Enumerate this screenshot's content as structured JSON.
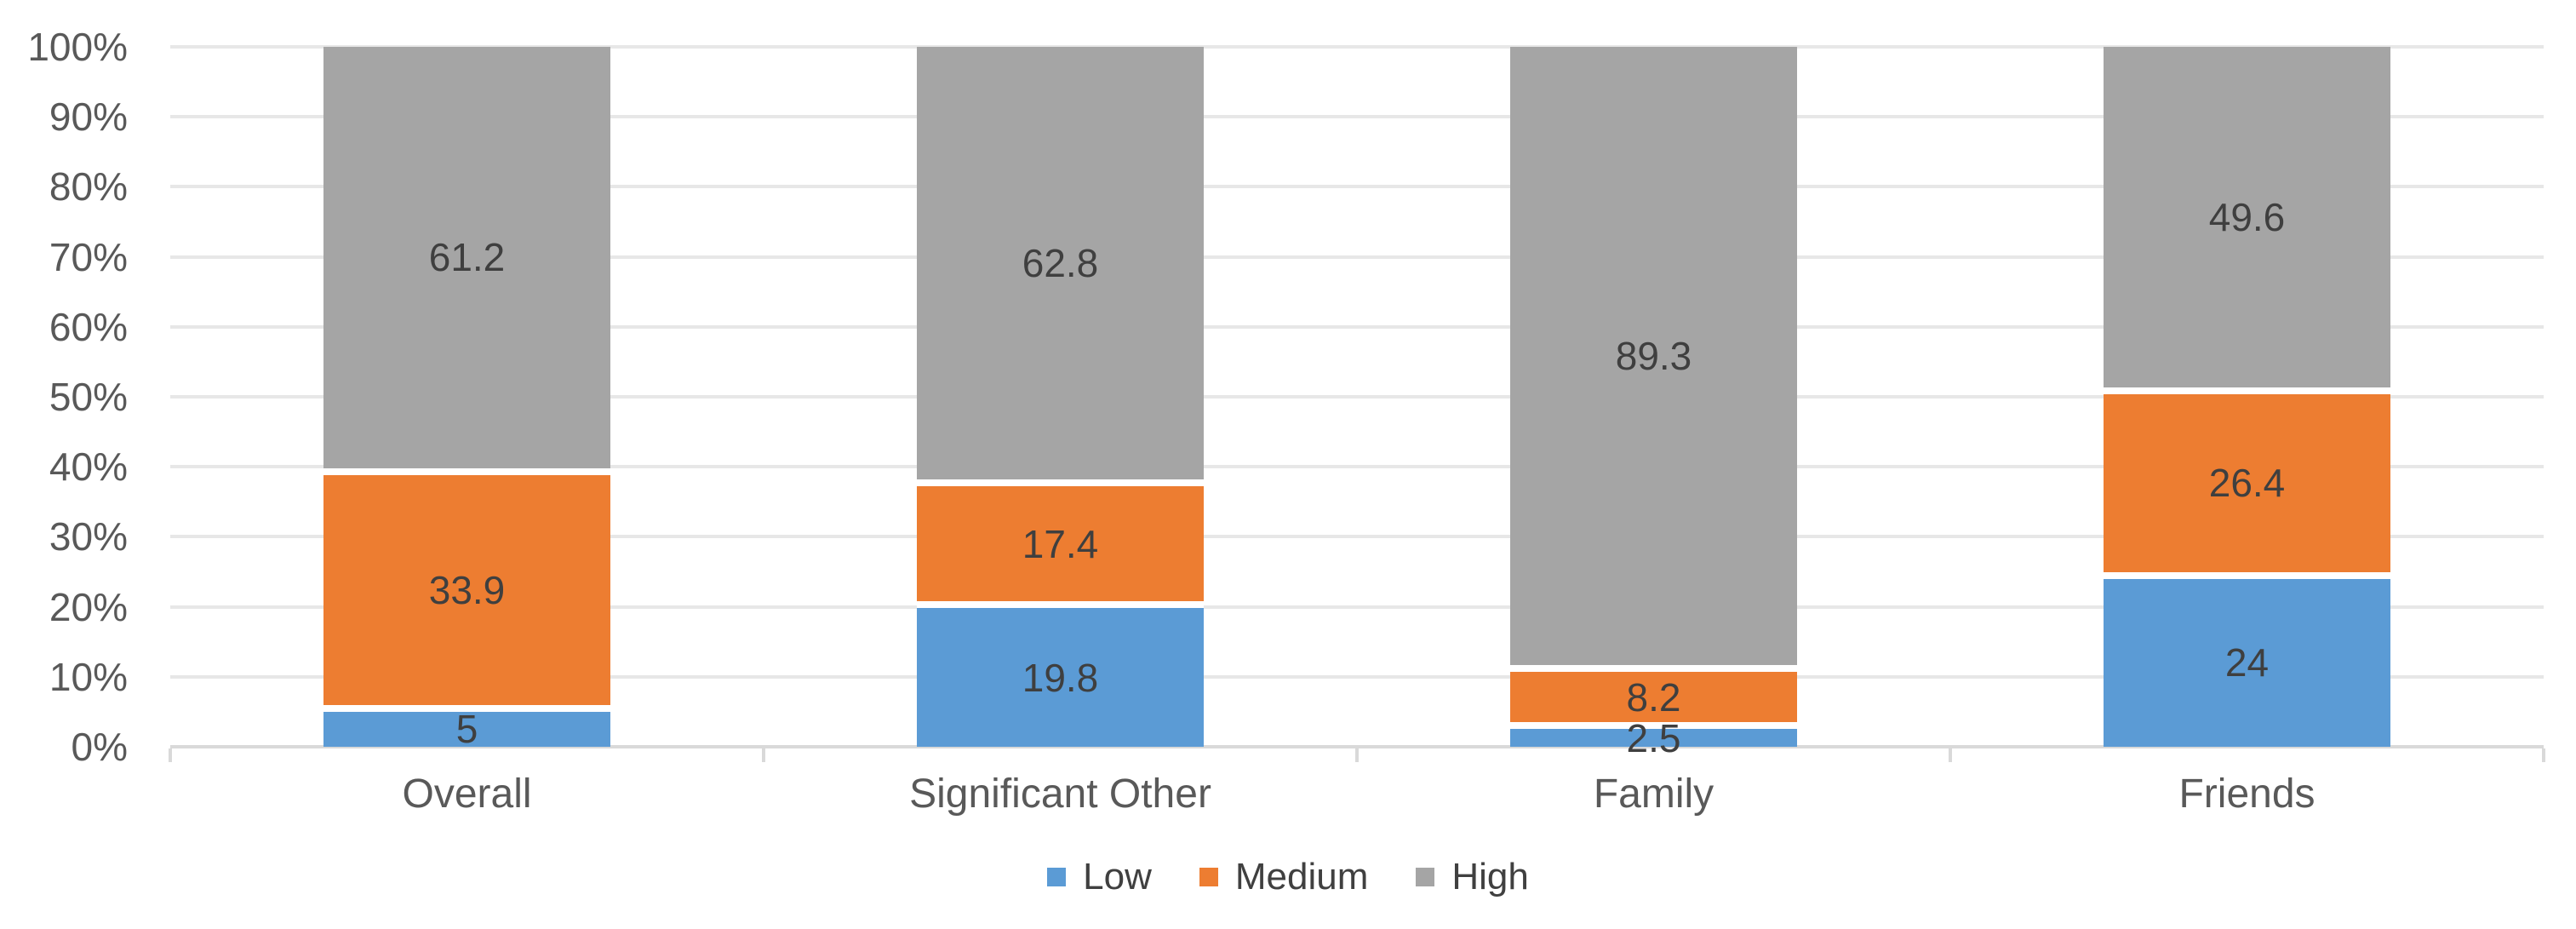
{
  "chart_data": {
    "type": "bar",
    "subtype": "stacked-100-percent",
    "title": "",
    "categories": [
      "Overall",
      "Significant Other",
      "Family",
      "Friends"
    ],
    "series": [
      {
        "name": "Low",
        "color": "#5B9BD5",
        "values": [
          5,
          19.8,
          2.5,
          24
        ],
        "labels": [
          "5",
          "19.8",
          "2.5",
          "24"
        ]
      },
      {
        "name": "Medium",
        "color": "#ED7D31",
        "values": [
          33.9,
          17.4,
          8.2,
          26.4
        ],
        "labels": [
          "33.9",
          "17.4",
          "8.2",
          "26.4"
        ]
      },
      {
        "name": "High",
        "color": "#A5A5A5",
        "values": [
          61.2,
          62.8,
          89.3,
          49.6
        ],
        "labels": [
          "61.2",
          "62.8",
          "89.3",
          "49.6"
        ]
      }
    ],
    "y_axis": {
      "min": 0,
      "max": 100,
      "format": "percent",
      "tick_labels": [
        "0%",
        "10%",
        "20%",
        "30%",
        "40%",
        "50%",
        "60%",
        "70%",
        "80%",
        "90%",
        "100%"
      ]
    },
    "legend": {
      "position": "bottom",
      "entries": [
        "Low",
        "Medium",
        "High"
      ]
    },
    "grid": true,
    "style_colors": {
      "gridline": "#E7E7E7",
      "axis_line": "#D9D9D9",
      "data_label_text": "#3F3F3F",
      "axis_label_text": "#595959",
      "legend_text": "#404040",
      "segment_separator": "#FFFFFF",
      "background": "#FFFFFF"
    }
  }
}
